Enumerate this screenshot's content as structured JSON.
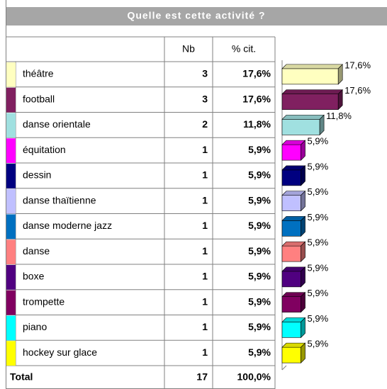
{
  "chart_data": {
    "type": "bar",
    "title": "Quelle est cette activité ?",
    "columns": [
      "Nb",
      "% cit."
    ],
    "categories": [
      "théâtre",
      "football",
      "danse orientale",
      "équitation",
      "dessin",
      "danse thaïtienne",
      "danse moderne jazz",
      "danse",
      "boxe",
      "trompette",
      "piano",
      "hockey sur glace"
    ],
    "counts": [
      3,
      3,
      2,
      1,
      1,
      1,
      1,
      1,
      1,
      1,
      1,
      1
    ],
    "values": [
      17.6,
      17.6,
      11.8,
      5.9,
      5.9,
      5.9,
      5.9,
      5.9,
      5.9,
      5.9,
      5.9,
      5.9
    ],
    "value_labels": [
      "17,6%",
      "17,6%",
      "11,8%",
      "5,9%",
      "5,9%",
      "5,9%",
      "5,9%",
      "5,9%",
      "5,9%",
      "5,9%",
      "5,9%",
      "5,9%"
    ],
    "colors": [
      "#ffffc0",
      "#802060",
      "#a0e0e0",
      "#ff00ff",
      "#000080",
      "#c0c0ff",
      "#0070c0",
      "#ff8080",
      "#500080",
      "#800060",
      "#00ffff",
      "#ffff00"
    ],
    "total": {
      "label": "Total",
      "count": 17,
      "percent": 100,
      "percent_label": "100,0%"
    }
  }
}
